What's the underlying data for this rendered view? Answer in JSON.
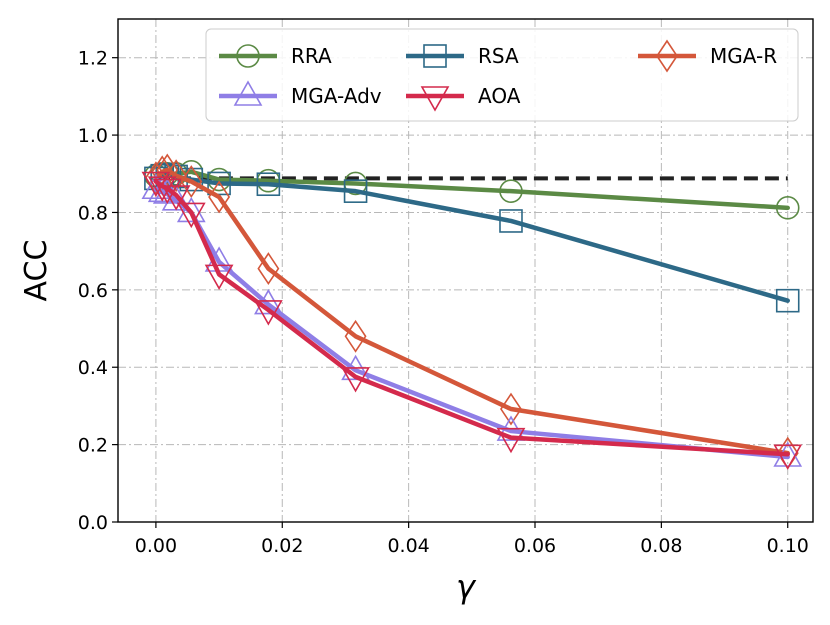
{
  "chart_data": {
    "type": "line",
    "title": "",
    "xlabel": "γ",
    "ylabel": "ACC",
    "xlim": [
      -0.006,
      0.104
    ],
    "ylim": [
      0.0,
      1.3
    ],
    "xticks": [
      0.0,
      0.02,
      0.04,
      0.06,
      0.08,
      0.1
    ],
    "xtick_labels": [
      "0.00",
      "0.02",
      "0.04",
      "0.06",
      "0.08",
      "0.10"
    ],
    "yticks": [
      0.0,
      0.2,
      0.4,
      0.6,
      0.8,
      1.0,
      1.2
    ],
    "ytick_labels": [
      "0.0",
      "0.2",
      "0.4",
      "0.6",
      "0.8",
      "1.0",
      "1.2"
    ],
    "grid": true,
    "legend_position": "top-right",
    "reference_line": {
      "y": 0.888,
      "x_range": [
        0.0,
        0.1
      ],
      "color": "#222222",
      "style": "dashed"
    },
    "series": [
      {
        "name": "RRA",
        "color": "#5b8a45",
        "marker": "circle",
        "x": [
          0.0,
          0.001,
          0.0018,
          0.0032,
          0.0056,
          0.01,
          0.0178,
          0.0316,
          0.0562,
          0.1
        ],
        "y": [
          0.895,
          0.9,
          0.9,
          0.9,
          0.905,
          0.885,
          0.882,
          0.875,
          0.855,
          0.812
        ]
      },
      {
        "name": "RSA",
        "color": "#2d6987",
        "marker": "square",
        "x": [
          0.0,
          0.001,
          0.0018,
          0.0032,
          0.0056,
          0.01,
          0.0178,
          0.0316,
          0.0562,
          0.1
        ],
        "y": [
          0.888,
          0.895,
          0.898,
          0.893,
          0.885,
          0.875,
          0.873,
          0.855,
          0.778,
          0.572
        ]
      },
      {
        "name": "MGA-R",
        "color": "#d4573a",
        "marker": "diamond",
        "x": [
          0.0,
          0.001,
          0.0018,
          0.0032,
          0.0056,
          0.01,
          0.0178,
          0.0316,
          0.0562,
          0.1
        ],
        "y": [
          0.89,
          0.905,
          0.91,
          0.895,
          0.88,
          0.84,
          0.655,
          0.48,
          0.292,
          0.178
        ]
      },
      {
        "name": "MGA-Adv",
        "color": "#8f7ee6",
        "marker": "triangle-up",
        "x": [
          0.0,
          0.001,
          0.0018,
          0.0032,
          0.0056,
          0.01,
          0.0178,
          0.0316,
          0.0562,
          0.1
        ],
        "y": [
          0.86,
          0.852,
          0.848,
          0.83,
          0.8,
          0.672,
          0.562,
          0.392,
          0.235,
          0.168
        ]
      },
      {
        "name": "AOA",
        "color": "#d42a4c",
        "marker": "triangle-down",
        "x": [
          0.0,
          0.001,
          0.0018,
          0.0032,
          0.0056,
          0.01,
          0.0178,
          0.0316,
          0.0562,
          0.1
        ],
        "y": [
          0.88,
          0.868,
          0.862,
          0.845,
          0.8,
          0.64,
          0.548,
          0.375,
          0.218,
          0.175
        ]
      }
    ]
  }
}
